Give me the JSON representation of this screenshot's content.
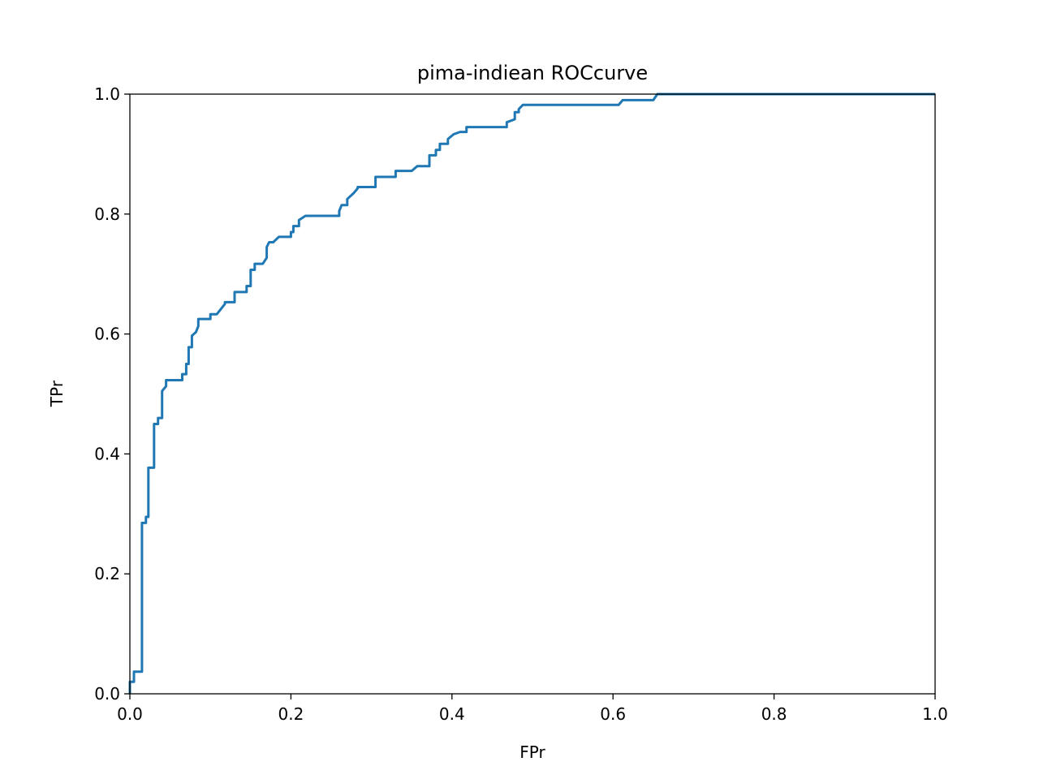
{
  "chart_data": {
    "type": "line",
    "title": "pima-indiean ROCcurve",
    "xlabel": "FPr",
    "ylabel": "TPr",
    "xlim": [
      0.0,
      1.0
    ],
    "ylim": [
      0.0,
      1.0
    ],
    "xticks": [
      "0.0",
      "0.2",
      "0.4",
      "0.6",
      "0.8",
      "1.0"
    ],
    "yticks": [
      "0.0",
      "0.2",
      "0.4",
      "0.6",
      "0.8",
      "1.0"
    ],
    "grid": false,
    "series": [
      {
        "color": "#1f77b4",
        "x": [
          0.0,
          0.0,
          0.005,
          0.005,
          0.015,
          0.015,
          0.02,
          0.02,
          0.023,
          0.023,
          0.03,
          0.03,
          0.035,
          0.035,
          0.04,
          0.04,
          0.045,
          0.045,
          0.065,
          0.065,
          0.07,
          0.07,
          0.073,
          0.073,
          0.077,
          0.077,
          0.082,
          0.085,
          0.085,
          0.1,
          0.1,
          0.108,
          0.118,
          0.118,
          0.13,
          0.13,
          0.145,
          0.145,
          0.15,
          0.15,
          0.155,
          0.155,
          0.165,
          0.17,
          0.17,
          0.173,
          0.178,
          0.185,
          0.188,
          0.2,
          0.2,
          0.203,
          0.203,
          0.21,
          0.21,
          0.218,
          0.223,
          0.26,
          0.26,
          0.263,
          0.27,
          0.27,
          0.278,
          0.283,
          0.283,
          0.305,
          0.305,
          0.33,
          0.33,
          0.35,
          0.357,
          0.372,
          0.372,
          0.38,
          0.38,
          0.385,
          0.385,
          0.395,
          0.395,
          0.402,
          0.41,
          0.418,
          0.418,
          0.468,
          0.468,
          0.478,
          0.478,
          0.483,
          0.483,
          0.488,
          0.493,
          0.607,
          0.612,
          0.65,
          0.655,
          1.0
        ],
        "y": [
          0.0,
          0.02,
          0.02,
          0.037,
          0.037,
          0.285,
          0.285,
          0.295,
          0.295,
          0.377,
          0.377,
          0.45,
          0.45,
          0.46,
          0.46,
          0.505,
          0.513,
          0.523,
          0.523,
          0.533,
          0.533,
          0.55,
          0.55,
          0.578,
          0.578,
          0.597,
          0.603,
          0.613,
          0.625,
          0.625,
          0.633,
          0.633,
          0.65,
          0.653,
          0.653,
          0.67,
          0.67,
          0.68,
          0.68,
          0.707,
          0.707,
          0.717,
          0.717,
          0.727,
          0.745,
          0.753,
          0.753,
          0.762,
          0.762,
          0.762,
          0.77,
          0.77,
          0.78,
          0.78,
          0.79,
          0.797,
          0.797,
          0.797,
          0.805,
          0.815,
          0.815,
          0.825,
          0.835,
          0.843,
          0.845,
          0.845,
          0.862,
          0.862,
          0.872,
          0.872,
          0.88,
          0.88,
          0.898,
          0.898,
          0.907,
          0.907,
          0.917,
          0.917,
          0.925,
          0.933,
          0.937,
          0.937,
          0.945,
          0.945,
          0.953,
          0.958,
          0.97,
          0.97,
          0.975,
          0.982,
          0.982,
          0.982,
          0.99,
          0.99,
          1.0,
          1.0
        ]
      }
    ]
  }
}
